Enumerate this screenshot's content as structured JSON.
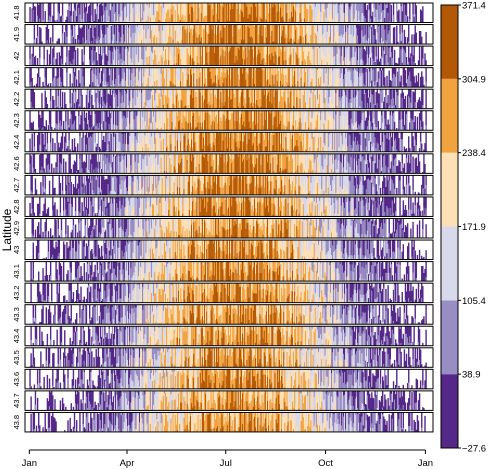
{
  "chart_data": {
    "type": "horizon",
    "ylabel": "Latitude",
    "rows": [
      "41.8",
      "41.9",
      "42",
      "42.1",
      "42.2",
      "42.3",
      "42.4",
      "42.6",
      "42.7",
      "42.8",
      "42.9",
      "43",
      "43.1",
      "43.2",
      "43.3",
      "43.4",
      "43.5",
      "43.6",
      "43.7",
      "43.8"
    ],
    "x_ticks": [
      "Jan",
      "Apr",
      "Jul",
      "Oct",
      "Jan"
    ],
    "x_tick_days": [
      0,
      90,
      181,
      273,
      365
    ],
    "x_domain_days": [
      -4,
      372
    ],
    "series_description": "daily values over one year per latitude; low in winter, peaking in summer",
    "color_scale": {
      "breaks": [
        -27.6,
        38.9,
        105.4,
        171.9,
        238.4,
        304.9,
        371.4
      ],
      "tick_labels": [
        "−27.6",
        "38.9",
        "105.4",
        "171.9",
        "238.4",
        "304.9",
        "371.4"
      ],
      "colors": [
        "#542788",
        "#998ec3",
        "#d8daeb",
        "#fee0b6",
        "#f1a340",
        "#b35806"
      ]
    }
  }
}
